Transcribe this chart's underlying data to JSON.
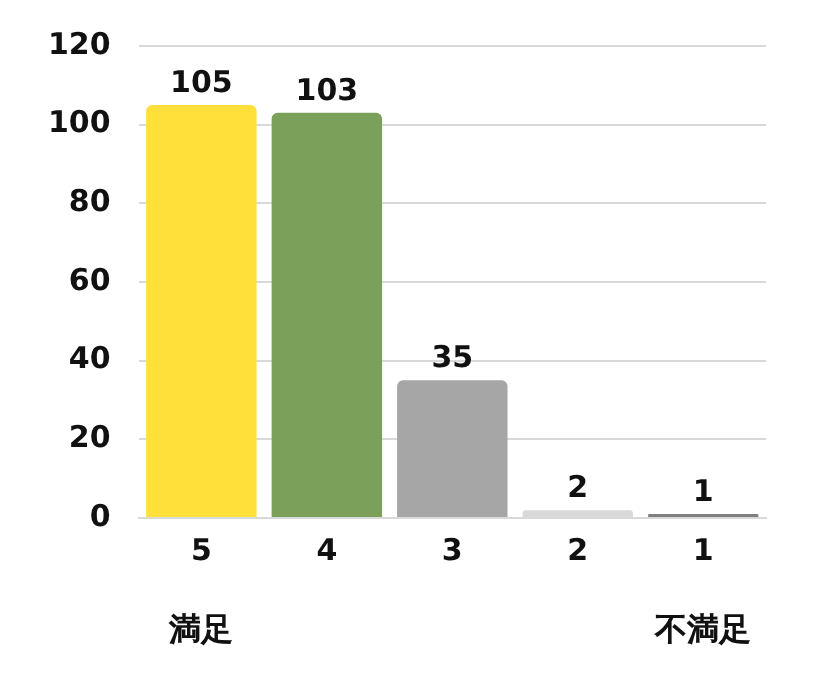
{
  "chart_data": {
    "type": "bar",
    "categories": [
      "5",
      "4",
      "3",
      "2",
      "1"
    ],
    "values": [
      105,
      103,
      35,
      2,
      1
    ],
    "colors": [
      "#ffdf3a",
      "#7aa05a",
      "#a6a6a6",
      "#d9d9d9",
      "#808080"
    ],
    "ylim": [
      0,
      120
    ],
    "yticks": [
      0,
      20,
      40,
      60,
      80,
      100,
      120
    ],
    "grid": "y",
    "data_labels": true,
    "legend": false,
    "annotations": [
      "満足",
      "不満足"
    ]
  }
}
